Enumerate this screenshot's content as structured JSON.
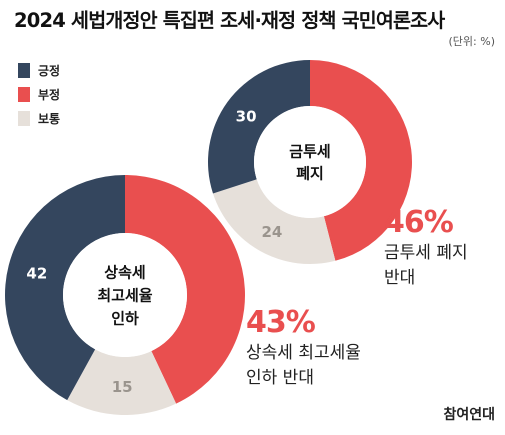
{
  "title": "2024 세법개정안 특집편 조세·재정 정책 국민여론조사",
  "unit": "(단위: %)",
  "legend": [
    {
      "label": "긍정",
      "color": "#34465E"
    },
    {
      "label": "부정",
      "color": "#E94F4F"
    },
    {
      "label": "보통",
      "color": "#E6E0DA"
    }
  ],
  "chart_data": [
    {
      "type": "pie",
      "center_label": [
        "금투세",
        "폐지"
      ],
      "slices": [
        {
          "category": "부정",
          "value": 46,
          "color": "#E94F4F"
        },
        {
          "category": "보통",
          "value": 24,
          "color": "#E6E0DA"
        },
        {
          "category": "긍정",
          "value": 30,
          "color": "#34465E"
        }
      ],
      "highlight_value": "46%",
      "highlight_text": [
        "금투세 폐지",
        "반대"
      ]
    },
    {
      "type": "pie",
      "center_label": [
        "상속세",
        "최고세율",
        "인하"
      ],
      "slices": [
        {
          "category": "부정",
          "value": 43,
          "color": "#E94F4F"
        },
        {
          "category": "보통",
          "value": 15,
          "color": "#E6E0DA"
        },
        {
          "category": "긍정",
          "value": 42,
          "color": "#34465E"
        }
      ],
      "highlight_value": "43%",
      "highlight_text": [
        "상속세 최고세율",
        "인하 반대"
      ]
    }
  ],
  "brand": "참여연대"
}
